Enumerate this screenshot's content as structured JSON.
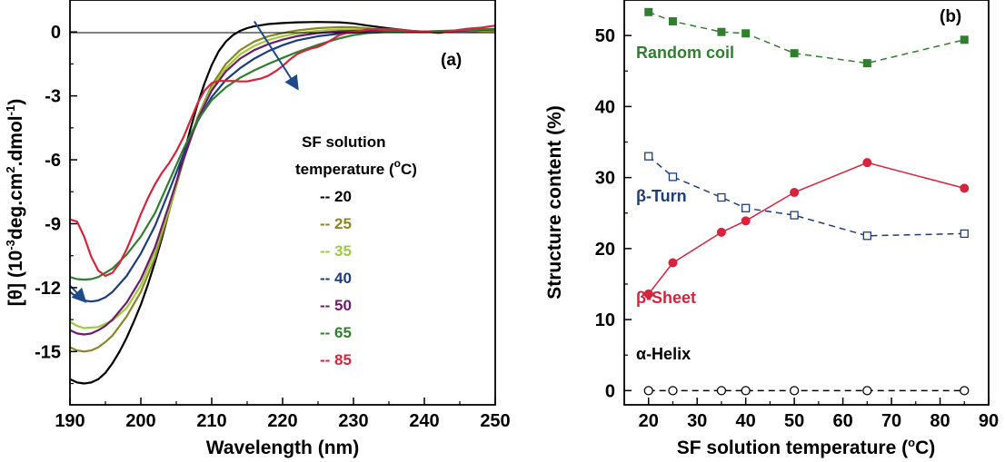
{
  "chart_data": [
    {
      "type": "line",
      "panel_label": "(a)",
      "xlabel": "Wavelength (nm)",
      "ylabel_parts": [
        "[θ] (10",
        "-3",
        "deg.cm",
        "2",
        ".dmol",
        "-1",
        ")"
      ],
      "xlim": [
        190,
        250
      ],
      "ylim": [
        -17.5,
        1.5
      ],
      "xticks": [
        "190",
        "200",
        "210",
        "220",
        "230",
        "240",
        "250"
      ],
      "yticks": [
        "0",
        "-3",
        "-6",
        "-9",
        "-12",
        "-15"
      ],
      "legend_title_line1": "SF solution",
      "legend_title_line2_parts": [
        "temperature (",
        "o",
        "C)"
      ],
      "series": [
        {
          "name": "-- 20",
          "color": "#000000",
          "x": [
            190,
            191,
            192,
            193,
            194,
            195,
            196,
            197,
            198,
            199,
            200,
            201,
            202,
            203,
            204,
            205,
            206,
            207,
            208,
            209,
            210,
            211,
            212,
            213,
            214,
            215,
            216,
            218,
            220,
            222,
            225,
            228,
            230,
            232,
            235,
            238,
            240,
            242,
            245,
            248,
            250
          ],
          "y": [
            -16.3,
            -16.45,
            -16.5,
            -16.45,
            -16.3,
            -16.0,
            -15.55,
            -15.0,
            -14.35,
            -13.6,
            -12.8,
            -11.85,
            -10.8,
            -9.65,
            -8.4,
            -7.1,
            -5.8,
            -4.55,
            -3.4,
            -2.4,
            -1.55,
            -0.9,
            -0.45,
            -0.15,
            0.05,
            0.18,
            0.27,
            0.37,
            0.42,
            0.45,
            0.47,
            0.45,
            0.4,
            0.3,
            0.17,
            0.06,
            0.0,
            0.0,
            0.02,
            0.05,
            0.05
          ]
        },
        {
          "name": "-- 25",
          "color": "#8c8620",
          "x": [
            190,
            191,
            192,
            193,
            194,
            195,
            196,
            198,
            200,
            202,
            204,
            206,
            208,
            210,
            212,
            214,
            216,
            218,
            220,
            222,
            225,
            228,
            230,
            232,
            235,
            238,
            240,
            245,
            250
          ],
          "y": [
            -14.8,
            -14.95,
            -15.0,
            -14.95,
            -14.8,
            -14.55,
            -14.25,
            -13.35,
            -12.2,
            -10.6,
            -8.4,
            -6.05,
            -4.0,
            -2.5,
            -1.5,
            -0.85,
            -0.45,
            -0.2,
            -0.05,
            0.07,
            0.18,
            0.23,
            0.22,
            0.17,
            0.08,
            0.02,
            0.0,
            0.03,
            0.06
          ]
        },
        {
          "name": "-- 35",
          "color": "#9ccc3c",
          "x": [
            190,
            191,
            192,
            194,
            196,
            198,
            200,
            202,
            204,
            206,
            208,
            210,
            212,
            214,
            216,
            218,
            220,
            222,
            225,
            228,
            230,
            232,
            235,
            238,
            240,
            245,
            250
          ],
          "y": [
            -13.6,
            -13.8,
            -13.9,
            -13.85,
            -13.55,
            -12.95,
            -11.9,
            -10.3,
            -8.3,
            -6.0,
            -4.05,
            -2.65,
            -1.7,
            -1.05,
            -0.65,
            -0.38,
            -0.2,
            -0.07,
            0.05,
            0.12,
            0.12,
            0.09,
            0.04,
            0.0,
            0.0,
            0.04,
            0.1
          ]
        },
        {
          "name": "-- 40",
          "color": "#1e3d7c",
          "x": [
            190,
            191,
            192,
            193,
            194,
            195,
            196,
            198,
            200,
            202,
            204,
            206,
            208,
            210,
            212,
            214,
            216,
            218,
            220,
            222,
            225,
            228,
            230,
            232,
            235,
            238,
            240,
            245,
            250
          ],
          "y": [
            -12.2,
            -12.45,
            -12.6,
            -12.65,
            -12.6,
            -12.45,
            -12.2,
            -11.45,
            -10.4,
            -9.1,
            -7.45,
            -5.75,
            -4.2,
            -3.05,
            -2.25,
            -1.7,
            -1.25,
            -0.9,
            -0.62,
            -0.4,
            -0.2,
            -0.08,
            -0.03,
            0.0,
            0.02,
            0.02,
            0.02,
            0.06,
            0.12
          ]
        },
        {
          "name": "-- 50",
          "color": "#6e1b6e",
          "x": [
            190,
            191,
            192,
            193,
            194,
            195,
            196,
            198,
            200,
            202,
            204,
            206,
            208,
            210,
            212,
            214,
            216,
            218,
            220,
            222,
            225,
            228,
            230,
            232,
            235,
            238,
            240,
            245,
            250
          ],
          "y": [
            -14.0,
            -14.15,
            -14.2,
            -14.15,
            -14.0,
            -13.8,
            -13.5,
            -12.7,
            -11.6,
            -10.1,
            -8.1,
            -6.0,
            -4.1,
            -2.75,
            -1.85,
            -1.25,
            -0.85,
            -0.57,
            -0.36,
            -0.2,
            -0.05,
            0.03,
            0.05,
            0.05,
            0.03,
            0.01,
            0.0,
            0.05,
            0.12
          ]
        },
        {
          "name": "-- 65",
          "color": "#2f7f2f",
          "x": [
            190,
            191,
            192,
            193,
            194,
            195,
            196,
            198,
            200,
            202,
            204,
            206,
            208,
            210,
            212,
            214,
            216,
            218,
            220,
            222,
            225,
            228,
            230,
            232,
            235,
            238,
            240,
            245,
            250
          ],
          "y": [
            -11.5,
            -11.6,
            -11.62,
            -11.6,
            -11.5,
            -11.3,
            -11.1,
            -10.45,
            -9.6,
            -8.5,
            -7.0,
            -5.5,
            -4.15,
            -3.2,
            -2.6,
            -2.15,
            -1.8,
            -1.5,
            -1.22,
            -0.95,
            -0.6,
            -0.3,
            -0.15,
            -0.05,
            0.0,
            0.02,
            0.02,
            0.08,
            0.15
          ]
        },
        {
          "name": "-- 85",
          "color": "#d8233c",
          "x": [
            190,
            191,
            192,
            193,
            194,
            195,
            196,
            197,
            198,
            199,
            200,
            201,
            202,
            203,
            204,
            205,
            206,
            207,
            208,
            209,
            210,
            211,
            212,
            213,
            214,
            215,
            216,
            217,
            218,
            219,
            220,
            221,
            222,
            223,
            224,
            225,
            226,
            227,
            228,
            229,
            230,
            232,
            234,
            236,
            238,
            240,
            242,
            244,
            246,
            248,
            250
          ],
          "y": [
            -8.8,
            -8.9,
            -9.6,
            -10.55,
            -11.2,
            -11.45,
            -11.3,
            -10.85,
            -10.2,
            -9.4,
            -8.55,
            -7.8,
            -7.15,
            -6.6,
            -6.15,
            -5.6,
            -4.95,
            -4.15,
            -3.35,
            -2.75,
            -2.4,
            -2.3,
            -2.3,
            -2.3,
            -2.32,
            -2.32,
            -2.25,
            -2.18,
            -2.05,
            -1.85,
            -1.6,
            -1.3,
            -1.05,
            -0.9,
            -0.78,
            -0.7,
            -0.55,
            -0.35,
            -0.15,
            -0.05,
            0.0,
            0.12,
            0.15,
            0.12,
            0.05,
            0.02,
            -0.05,
            0.05,
            0.15,
            0.2,
            0.3
          ]
        }
      ],
      "arrows": [
        {
          "from": [
            216,
            0.5
          ],
          "to": [
            222,
            -2.6
          ]
        },
        {
          "from": [
            190,
            -11.9
          ],
          "to": [
            192,
            -12.6
          ]
        }
      ]
    },
    {
      "type": "line",
      "panel_label": "(b)",
      "xlabel_parts": [
        "SF solution temperature (",
        "o",
        "C)"
      ],
      "ylabel": "Structure content (%)",
      "xlim": [
        15,
        90
      ],
      "ylim": [
        -2,
        55
      ],
      "xticks": [
        "20",
        "30",
        "40",
        "50",
        "60",
        "70",
        "80",
        "90"
      ],
      "yticks": [
        "0",
        "10",
        "20",
        "30",
        "40",
        "50"
      ],
      "x": [
        20,
        25,
        35,
        40,
        50,
        65,
        85
      ],
      "series": [
        {
          "name": "Random coil",
          "color": "#2f7f2f",
          "marker": "square-filled",
          "dash": true,
          "values": [
            53.3,
            52.0,
            50.5,
            50.3,
            47.5,
            46.1,
            49.4
          ]
        },
        {
          "name": "β-Turn",
          "color": "#1e3d7c",
          "marker": "square-open",
          "dash": true,
          "values": [
            33.0,
            30.1,
            27.2,
            25.7,
            24.7,
            21.8,
            22.1
          ]
        },
        {
          "name": "β-Sheet",
          "color": "#d8233c",
          "marker": "circle-filled",
          "dash": false,
          "values": [
            13.6,
            18.0,
            22.3,
            23.9,
            27.9,
            32.1,
            28.5
          ]
        },
        {
          "name": "α-Helix",
          "color": "#000000",
          "marker": "circle-open",
          "dash": true,
          "values": [
            0,
            0,
            0,
            0,
            0,
            0,
            0
          ]
        }
      ]
    }
  ]
}
